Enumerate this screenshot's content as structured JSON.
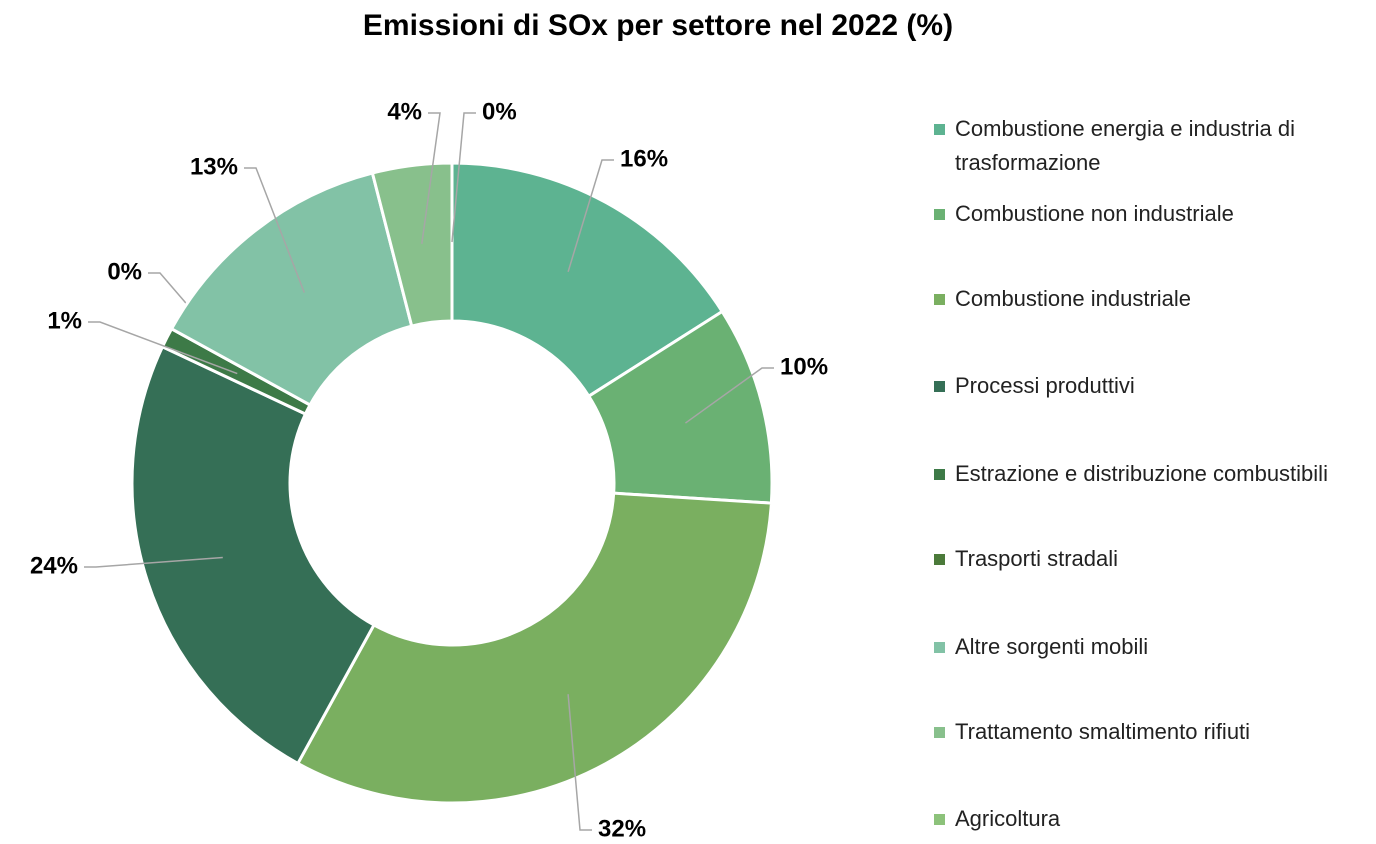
{
  "chart_data": {
    "type": "donut",
    "title": "Emissioni di SOx per settore nel 2022 (%)",
    "categories": [
      "Combustione energia e industria di trasformazione",
      "Combustione non industriale",
      "Combustione industriale",
      "Processi produttivi",
      "Estrazione e distribuzione combustibili",
      "Trasporti stradali",
      "Altre sorgenti mobili",
      "Trattamento smaltimento rifiuti",
      "Agricoltura"
    ],
    "values": [
      16,
      10,
      32,
      24,
      1,
      0,
      13,
      4,
      0
    ],
    "value_labels": [
      "16%",
      "10%",
      "32%",
      "24%",
      "1%",
      "0%",
      "13%",
      "4%",
      "0%"
    ],
    "colors": [
      "#5db391",
      "#6ab173",
      "#7aaf60",
      "#356f56",
      "#3d7a47",
      "#4b7a3a",
      "#82c2a6",
      "#88c08c",
      "#8cc27a"
    ],
    "legend": "right"
  }
}
